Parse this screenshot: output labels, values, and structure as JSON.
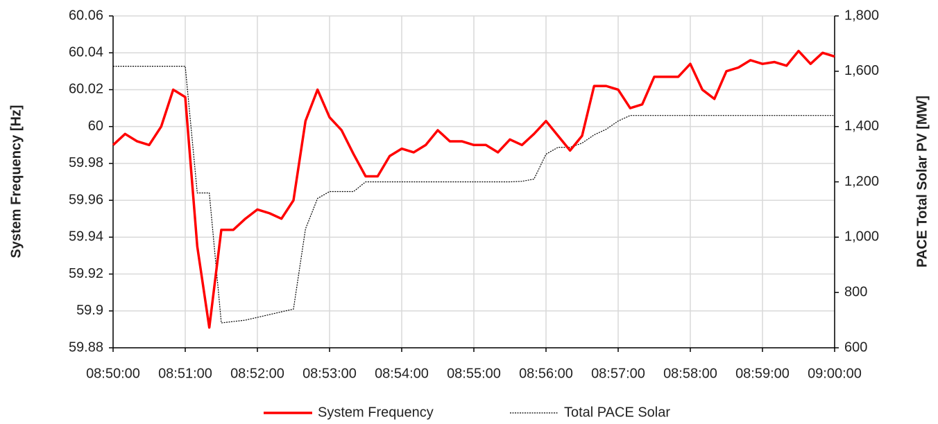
{
  "chart_data": {
    "type": "line",
    "y_label": "System Frequency [Hz]",
    "y2_label": "PACE Total Solar PV [MW]",
    "x": [
      "08:50:00",
      "08:50:10",
      "08:50:20",
      "08:50:30",
      "08:50:40",
      "08:50:50",
      "08:51:00",
      "08:51:10",
      "08:51:20",
      "08:51:30",
      "08:51:40",
      "08:51:50",
      "08:52:00",
      "08:52:10",
      "08:52:20",
      "08:52:30",
      "08:52:40",
      "08:52:50",
      "08:53:00",
      "08:53:10",
      "08:53:20",
      "08:53:30",
      "08:53:40",
      "08:53:50",
      "08:54:00",
      "08:54:10",
      "08:54:20",
      "08:54:30",
      "08:54:40",
      "08:54:50",
      "08:55:00",
      "08:55:10",
      "08:55:20",
      "08:55:30",
      "08:55:40",
      "08:55:50",
      "08:56:00",
      "08:56:10",
      "08:56:20",
      "08:56:30",
      "08:56:40",
      "08:56:50",
      "08:57:00",
      "08:57:10",
      "08:57:20",
      "08:57:30",
      "08:57:40",
      "08:57:50",
      "08:58:00",
      "08:58:10",
      "08:58:20",
      "08:58:30",
      "08:58:40",
      "08:58:50",
      "08:59:00",
      "08:59:10",
      "08:59:20",
      "08:59:30",
      "08:59:40",
      "08:59:50",
      "09:00:00"
    ],
    "series": [
      {
        "name": "System Frequency",
        "color": "#ff0000",
        "values": [
          59.99,
          59.996,
          59.992,
          59.99,
          60.0,
          60.02,
          60.016,
          59.935,
          59.891,
          59.944,
          59.944,
          59.95,
          59.955,
          59.953,
          59.95,
          59.96,
          60.003,
          60.02,
          60.005,
          59.998,
          59.985,
          59.973,
          59.973,
          59.984,
          59.988,
          59.986,
          59.99,
          59.998,
          59.992,
          59.992,
          59.99,
          59.99,
          59.986,
          59.993,
          59.99,
          59.996,
          60.003,
          59.995,
          59.987,
          59.995,
          60.022,
          60.022,
          60.02,
          60.01,
          60.012,
          60.027,
          60.027,
          60.027,
          60.034,
          60.02,
          60.015,
          60.03,
          60.032,
          60.036,
          60.034,
          60.035,
          60.033,
          60.041,
          60.034,
          60.04,
          60.038
        ]
      },
      {
        "name": "Total PACE Solar",
        "color": "#000000",
        "axis": "y2",
        "dashed": true,
        "values": [
          1618,
          1618,
          1618,
          1618,
          1618,
          1618,
          1618,
          1160,
          1160,
          690,
          695,
          700,
          710,
          720,
          730,
          740,
          1030,
          1140,
          1165,
          1165,
          1165,
          1200,
          1200,
          1200,
          1200,
          1200,
          1200,
          1200,
          1200,
          1200,
          1200,
          1200,
          1200,
          1200,
          1202,
          1210,
          1300,
          1325,
          1325,
          1340,
          1370,
          1390,
          1420,
          1440,
          1440,
          1440,
          1440,
          1440,
          1440,
          1440,
          1440,
          1440,
          1440,
          1440,
          1440,
          1440,
          1440,
          1440,
          1440,
          1440,
          1440
        ]
      }
    ],
    "xlim": [
      "08:50:00",
      "09:00:00"
    ],
    "xticks": [
      "08:50:00",
      "08:51:00",
      "08:52:00",
      "08:53:00",
      "08:54:00",
      "08:55:00",
      "08:56:00",
      "08:57:00",
      "08:58:00",
      "08:59:00",
      "09:00:00"
    ],
    "ylim": [
      59.88,
      60.06
    ],
    "yticks": [
      59.88,
      59.9,
      59.92,
      59.94,
      59.96,
      59.98,
      60,
      60.02,
      60.04,
      60.06
    ],
    "y2lim": [
      600,
      1800
    ],
    "y2ticks": [
      600,
      800,
      {
        "value": 1000,
        "label": "1,000"
      },
      {
        "value": 1200,
        "label": "1,200"
      },
      {
        "value": 1400,
        "label": "1,400"
      },
      {
        "value": 1600,
        "label": "1,600"
      },
      {
        "value": 1800,
        "label": "1,800"
      }
    ],
    "grid": true,
    "legend": "bottom"
  }
}
